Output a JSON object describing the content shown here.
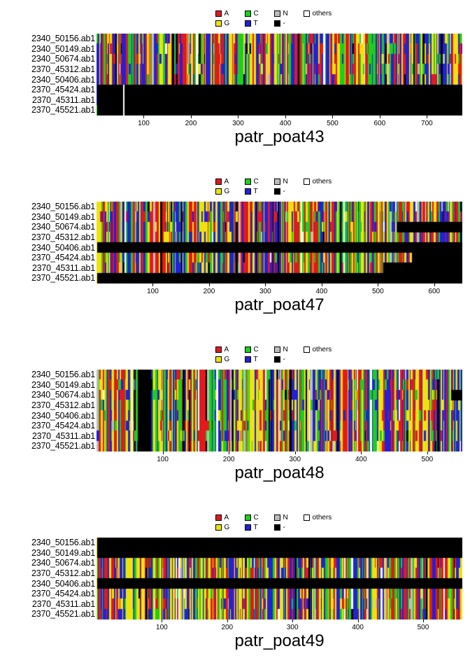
{
  "figure": {
    "background": "#ffffff"
  },
  "palette": {
    "A": "#e3191c",
    "G": "#efe20c",
    "C": "#1ccf1c",
    "T": "#2222d5",
    "N": "#bdbdbd",
    "others": "#ffffff",
    "gap": "#000000"
  },
  "legend": {
    "rows": [
      [
        {
          "label": "A",
          "color": "#e3191c"
        },
        {
          "label": "C",
          "color": "#1ccf1c"
        },
        {
          "label": "N",
          "color": "#bdbdbd"
        },
        {
          "label": "others",
          "color": "#ffffff"
        }
      ],
      [
        {
          "label": "G",
          "color": "#efe20c"
        },
        {
          "label": "T",
          "color": "#2222d5"
        },
        {
          "label": "-",
          "color": "#000000"
        }
      ]
    ]
  },
  "chart_data": [
    {
      "type": "heatmap",
      "title": "patr_poat43",
      "xlim": [
        1,
        775
      ],
      "x_ticks": [
        100,
        200,
        300,
        400,
        500,
        600,
        700
      ],
      "legend_position": "top",
      "rows": [
        {
          "label": "2340_50156.ab1",
          "segments": [
            {
              "from": 1,
              "to": 775,
              "kind": "sequence"
            }
          ]
        },
        {
          "label": "2340_50149.ab1",
          "segments": [
            {
              "from": 1,
              "to": 775,
              "kind": "sequence"
            }
          ]
        },
        {
          "label": "2340_50674.ab1",
          "segments": [
            {
              "from": 1,
              "to": 775,
              "kind": "sequence"
            }
          ]
        },
        {
          "label": "2370_45312.ab1",
          "segments": [
            {
              "from": 1,
              "to": 775,
              "kind": "sequence"
            }
          ]
        },
        {
          "label": "2340_50406.ab1",
          "segments": [
            {
              "from": 1,
              "to": 775,
              "kind": "sequence"
            }
          ]
        },
        {
          "label": "2370_45424.ab1",
          "segments": [
            {
              "from": 1,
              "to": 775,
              "kind": "gap"
            },
            {
              "from": 56,
              "to": 60,
              "kind": "blank"
            }
          ]
        },
        {
          "label": "2370_45311.ab1",
          "segments": [
            {
              "from": 1,
              "to": 775,
              "kind": "gap"
            },
            {
              "from": 56,
              "to": 60,
              "kind": "blank"
            }
          ]
        },
        {
          "label": "2370_45521.ab1",
          "segments": [
            {
              "from": 1,
              "to": 775,
              "kind": "gap"
            },
            {
              "from": 56,
              "to": 60,
              "kind": "blank"
            }
          ]
        }
      ]
    },
    {
      "type": "heatmap",
      "title": "patr_poat47",
      "xlim": [
        1,
        650
      ],
      "x_ticks": [
        100,
        200,
        300,
        400,
        500,
        600
      ],
      "legend_position": "top",
      "rows": [
        {
          "label": "2340_50156.ab1",
          "segments": [
            {
              "from": 1,
              "to": 650,
              "kind": "sequence"
            }
          ]
        },
        {
          "label": "2340_50149.ab1",
          "segments": [
            {
              "from": 1,
              "to": 650,
              "kind": "sequence"
            }
          ]
        },
        {
          "label": "2340_50674.ab1",
          "segments": [
            {
              "from": 1,
              "to": 535,
              "kind": "sequence"
            },
            {
              "from": 535,
              "to": 650,
              "kind": "gap"
            }
          ]
        },
        {
          "label": "2370_45312.ab1",
          "segments": [
            {
              "from": 1,
              "to": 650,
              "kind": "sequence"
            }
          ]
        },
        {
          "label": "2340_50406.ab1",
          "segments": [
            {
              "from": 1,
              "to": 650,
              "kind": "gap"
            }
          ]
        },
        {
          "label": "2370_45424.ab1",
          "segments": [
            {
              "from": 1,
              "to": 560,
              "kind": "sequence"
            },
            {
              "from": 560,
              "to": 650,
              "kind": "gap"
            }
          ]
        },
        {
          "label": "2370_45311.ab1",
          "segments": [
            {
              "from": 1,
              "to": 510,
              "kind": "sequence"
            },
            {
              "from": 510,
              "to": 650,
              "kind": "gap"
            }
          ]
        },
        {
          "label": "2370_45521.ab1",
          "segments": [
            {
              "from": 1,
              "to": 650,
              "kind": "gap"
            }
          ]
        }
      ]
    },
    {
      "type": "heatmap",
      "title": "patr_poat48",
      "xlim": [
        1,
        553
      ],
      "x_ticks": [
        100,
        200,
        300,
        400,
        500
      ],
      "legend_position": "top",
      "rows": [
        {
          "label": "2340_50156.ab1",
          "segments": [
            {
              "from": 1,
              "to": 553,
              "kind": "sequence"
            },
            {
              "from": 62,
              "to": 82,
              "kind": "gap"
            }
          ]
        },
        {
          "label": "2340_50149.ab1",
          "segments": [
            {
              "from": 1,
              "to": 553,
              "kind": "sequence"
            },
            {
              "from": 62,
              "to": 82,
              "kind": "gap"
            }
          ]
        },
        {
          "label": "2340_50674.ab1",
          "segments": [
            {
              "from": 1,
              "to": 553,
              "kind": "sequence"
            },
            {
              "from": 62,
              "to": 82,
              "kind": "gap"
            },
            {
              "from": 536,
              "to": 553,
              "kind": "gap"
            }
          ]
        },
        {
          "label": "2370_45312.ab1",
          "segments": [
            {
              "from": 1,
              "to": 553,
              "kind": "sequence"
            },
            {
              "from": 62,
              "to": 82,
              "kind": "gap"
            }
          ]
        },
        {
          "label": "2340_50406.ab1",
          "segments": [
            {
              "from": 1,
              "to": 553,
              "kind": "sequence"
            },
            {
              "from": 62,
              "to": 82,
              "kind": "gap"
            }
          ]
        },
        {
          "label": "2370_45424.ab1",
          "segments": [
            {
              "from": 1,
              "to": 553,
              "kind": "sequence"
            },
            {
              "from": 62,
              "to": 82,
              "kind": "gap"
            }
          ]
        },
        {
          "label": "2370_45311.ab1",
          "segments": [
            {
              "from": 1,
              "to": 553,
              "kind": "sequence"
            },
            {
              "from": 62,
              "to": 82,
              "kind": "gap"
            }
          ]
        },
        {
          "label": "2370_45521.ab1",
          "segments": [
            {
              "from": 1,
              "to": 553,
              "kind": "sequence"
            },
            {
              "from": 62,
              "to": 82,
              "kind": "gap"
            }
          ]
        }
      ]
    },
    {
      "type": "heatmap",
      "title": "patr_poat49",
      "xlim": [
        1,
        560
      ],
      "x_ticks": [
        100,
        200,
        300,
        400,
        500
      ],
      "legend_position": "top",
      "rows": [
        {
          "label": "2340_50156.ab1",
          "segments": [
            {
              "from": 1,
              "to": 560,
              "kind": "gap"
            }
          ]
        },
        {
          "label": "2340_50149.ab1",
          "segments": [
            {
              "from": 1,
              "to": 560,
              "kind": "gap"
            }
          ]
        },
        {
          "label": "2340_50674.ab1",
          "segments": [
            {
              "from": 1,
              "to": 560,
              "kind": "sequence"
            }
          ]
        },
        {
          "label": "2370_45312.ab1",
          "segments": [
            {
              "from": 1,
              "to": 560,
              "kind": "sequence"
            }
          ]
        },
        {
          "label": "2340_50406.ab1",
          "segments": [
            {
              "from": 1,
              "to": 560,
              "kind": "gap"
            }
          ]
        },
        {
          "label": "2370_45424.ab1",
          "segments": [
            {
              "from": 1,
              "to": 560,
              "kind": "sequence"
            }
          ]
        },
        {
          "label": "2370_45311.ab1",
          "segments": [
            {
              "from": 1,
              "to": 560,
              "kind": "sequence"
            }
          ]
        },
        {
          "label": "2370_45521.ab1",
          "segments": [
            {
              "from": 1,
              "to": 560,
              "kind": "sequence"
            }
          ]
        }
      ]
    }
  ]
}
